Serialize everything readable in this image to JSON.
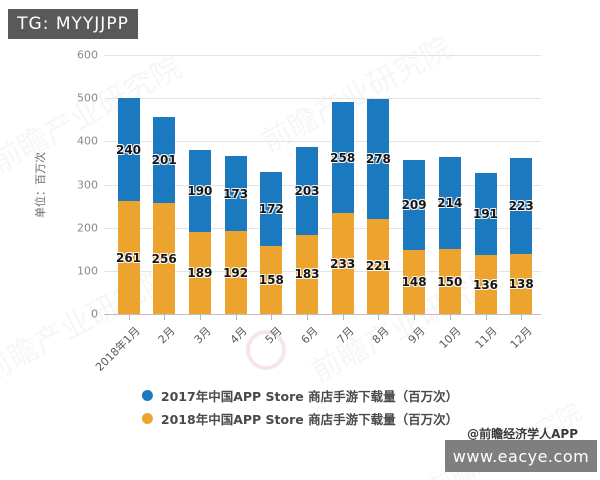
{
  "header": {
    "tag_label": "TG: MYYJJPP"
  },
  "chart_data": {
    "type": "bar",
    "stacked": true,
    "title": "",
    "unit_label": "单位：百万次",
    "xlabel": "",
    "ylabel": "单位：百万次",
    "ylim": [
      0,
      600
    ],
    "ytick_step": 100,
    "grid": true,
    "legend_position": "bottom",
    "categories": [
      "2018年1月",
      "2月",
      "3月",
      "4月",
      "5月",
      "6月",
      "7月",
      "8月",
      "9月",
      "10月",
      "11月",
      "12月"
    ],
    "series": [
      {
        "name": "2017年中国APP Store 商店手游下载量（百万次）",
        "color": "#1b7abf",
        "stack": "top",
        "values": [
          240,
          201,
          190,
          173,
          172,
          203,
          258,
          278,
          209,
          214,
          191,
          223
        ]
      },
      {
        "name": "2018年中国APP Store 商店手游下载量（百万次）",
        "color": "#eda42e",
        "stack": "bottom",
        "values": [
          261,
          256,
          189,
          192,
          158,
          183,
          233,
          221,
          148,
          150,
          136,
          138
        ]
      }
    ]
  },
  "footer": {
    "credit": "@前瞻经济学人APP",
    "site": "www.eacye.com"
  },
  "watermark": {
    "diagonal_text": "前瞻产业研究院"
  },
  "colors": {
    "series_2017_blue": "#1b7abf",
    "series_2018_yellow": "#eda42e",
    "tag_box_bg": "#59595b",
    "site_box_bg": "#7f7f7f",
    "gridline": "#e4e4e4"
  }
}
